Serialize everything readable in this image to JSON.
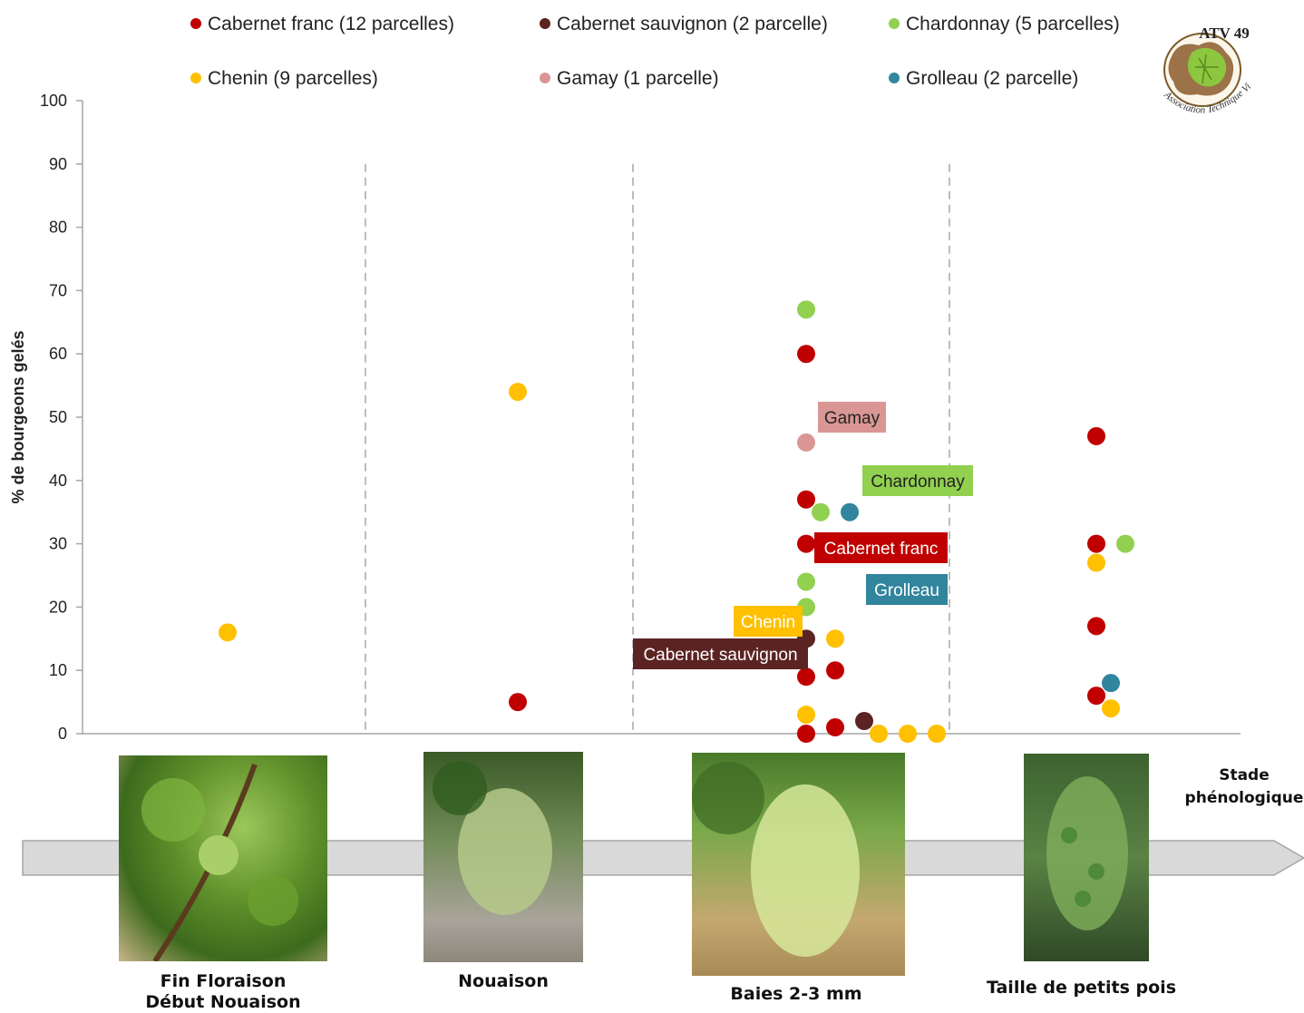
{
  "chart_data": {
    "type": "scatter",
    "ylabel": "% de bourgeons gelés",
    "ylim": [
      0,
      100
    ],
    "yticks": [
      0,
      10,
      20,
      30,
      40,
      50,
      60,
      70,
      80,
      90,
      100
    ],
    "x_categories": [
      "Fin Floraison\nDébut Nouaison",
      "Nouaison",
      "Baies 2-3 mm",
      "Taille de petits pois"
    ],
    "x_axis_caption": "Stade\nphénologique",
    "grid": false,
    "legend_position": "top",
    "series": [
      {
        "name": "Cabernet franc (12 parcelles)",
        "color": "#C00000",
        "points": [
          {
            "stage": 1,
            "y": 5
          },
          {
            "stage": 2,
            "y": 60
          },
          {
            "stage": 2,
            "y": 37
          },
          {
            "stage": 2,
            "y": 30
          },
          {
            "stage": 2,
            "y": 9
          },
          {
            "stage": 2,
            "y": 0
          },
          {
            "stage": 2,
            "y": 10
          },
          {
            "stage": 2,
            "y": 1
          },
          {
            "stage": 3,
            "y": 47
          },
          {
            "stage": 3,
            "y": 30
          },
          {
            "stage": 3,
            "y": 17
          },
          {
            "stage": 3,
            "y": 6
          }
        ]
      },
      {
        "name": "Cabernet sauvignon (2 parcelle)",
        "color": "#5C2323",
        "points": [
          {
            "stage": 2,
            "y": 15
          },
          {
            "stage": 2,
            "y": 2
          }
        ]
      },
      {
        "name": "Chardonnay (5 parcelles)",
        "color": "#92D050",
        "points": [
          {
            "stage": 2,
            "y": 67
          },
          {
            "stage": 2,
            "y": 35
          },
          {
            "stage": 2,
            "y": 24
          },
          {
            "stage": 2,
            "y": 20
          },
          {
            "stage": 3,
            "y": 30
          }
        ]
      },
      {
        "name": "Chenin (9 parcelles)",
        "color": "#FFC000",
        "points": [
          {
            "stage": 0,
            "y": 16
          },
          {
            "stage": 1,
            "y": 54
          },
          {
            "stage": 2,
            "y": 15
          },
          {
            "stage": 2,
            "y": 3
          },
          {
            "stage": 2,
            "y": 0
          },
          {
            "stage": 2,
            "y": 0
          },
          {
            "stage": 2,
            "y": 0
          },
          {
            "stage": 3,
            "y": 27
          },
          {
            "stage": 3,
            "y": 4
          }
        ]
      },
      {
        "name": "Gamay (1 parcelle)",
        "color": "#D99694",
        "points": [
          {
            "stage": 2,
            "y": 46
          }
        ]
      },
      {
        "name": "Grolleau (2 parcelle)",
        "color": "#31859C",
        "points": [
          {
            "stage": 2,
            "y": 35
          },
          {
            "stage": 3,
            "y": 8
          }
        ]
      }
    ],
    "annotations": [
      {
        "text": "Gamay",
        "bg": "#D99694",
        "fg": "#222222"
      },
      {
        "text": "Chardonnay",
        "bg": "#92D050",
        "fg": "#222222"
      },
      {
        "text": "Cabernet franc",
        "bg": "#C00000",
        "fg": "#ffffff"
      },
      {
        "text": "Grolleau",
        "bg": "#31859C",
        "fg": "#ffffff"
      },
      {
        "text": "Chenin",
        "bg": "#FFC000",
        "fg": "#ffffff"
      },
      {
        "text": "Cabernet sauvignon",
        "bg": "#5C2323",
        "fg": "#ffffff"
      }
    ]
  },
  "logo": {
    "text": "ATV 49",
    "subtitle": "Association Technique Viticole"
  },
  "stages": {
    "s0_line1": "Fin Floraison",
    "s0_line2": "Début Nouaison",
    "s1": "Nouaison",
    "s2": "Baies 2-3 mm",
    "s3": "Taille de petits pois",
    "axis_line1": "Stade",
    "axis_line2": "phénologique"
  }
}
